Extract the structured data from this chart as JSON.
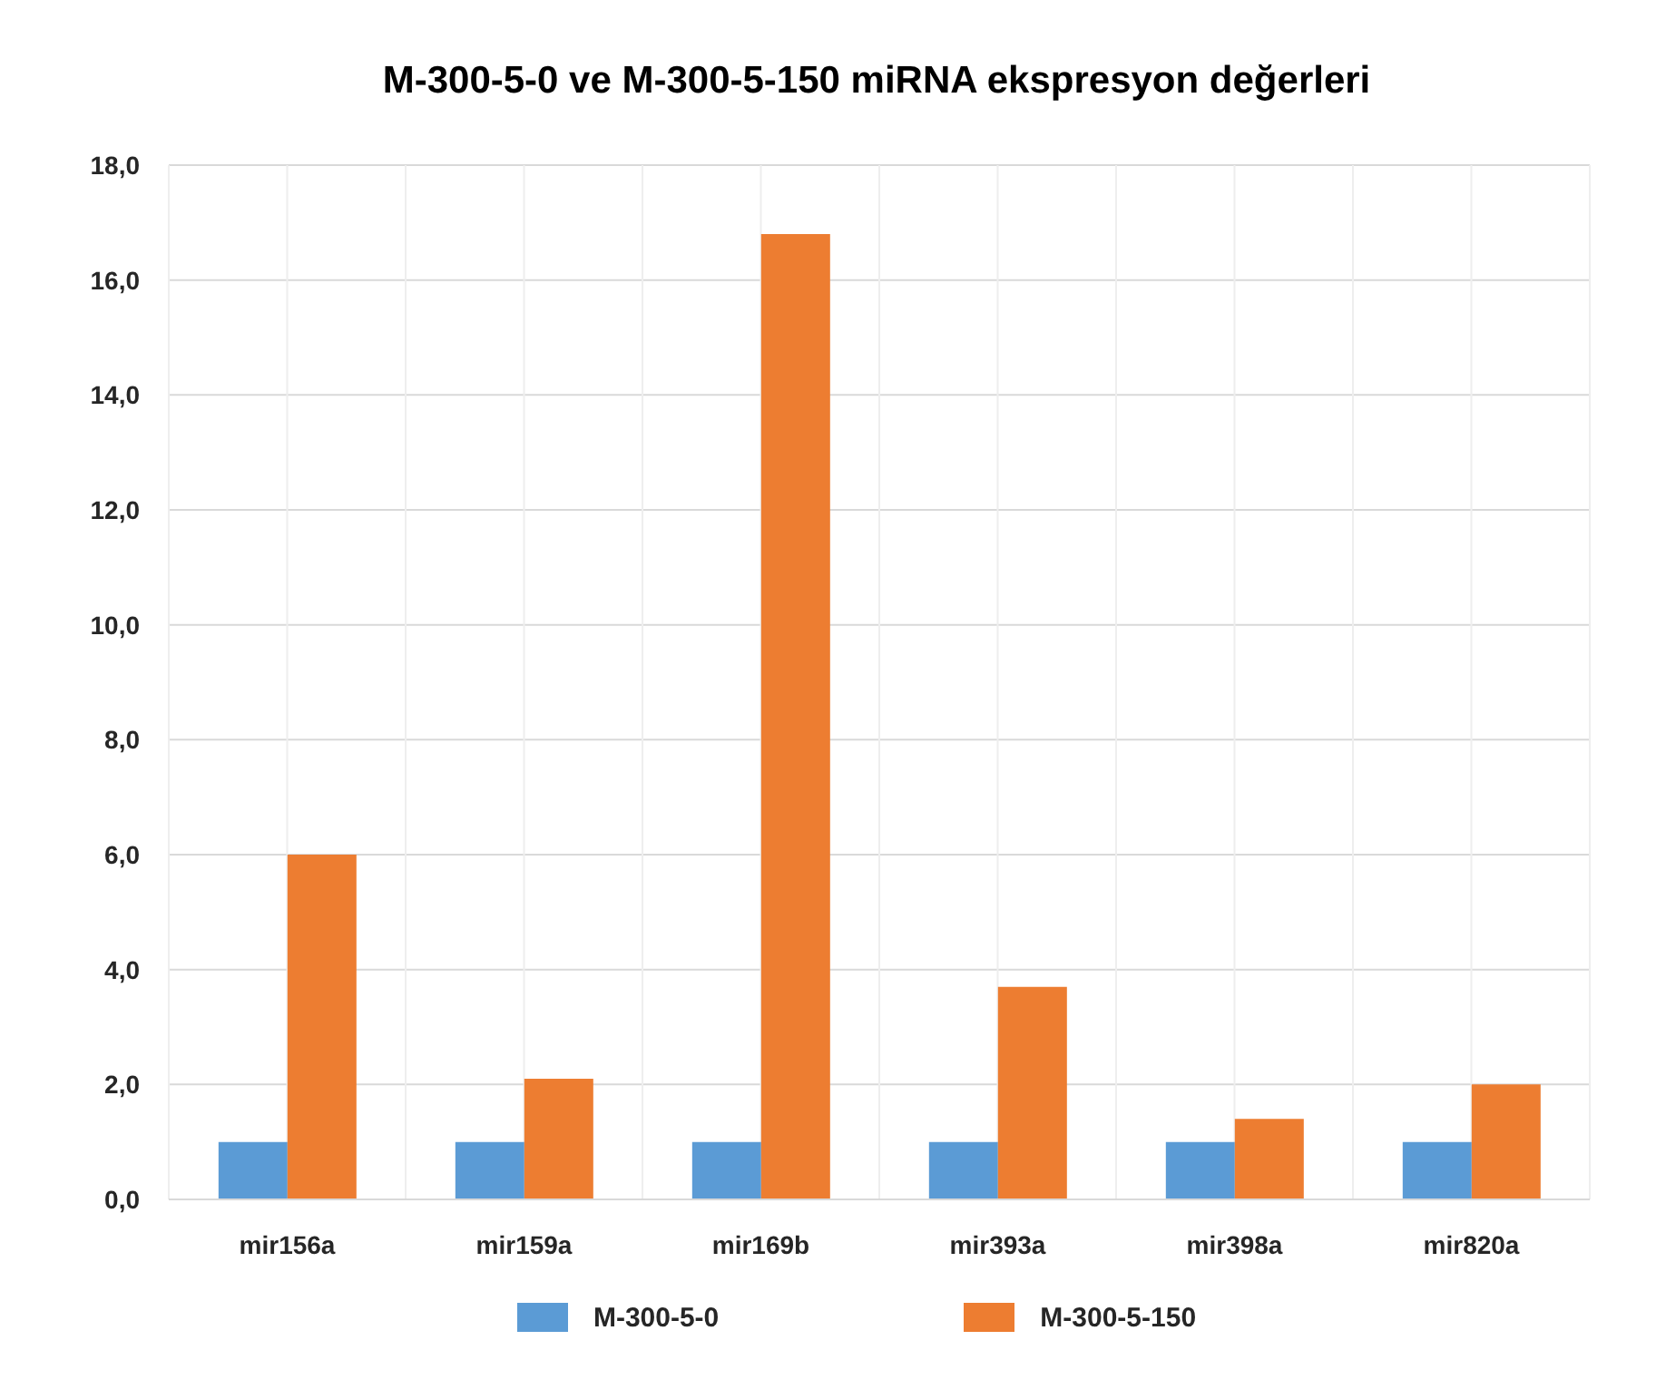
{
  "chart_data": {
    "type": "bar",
    "title": "M-300-5-0 ve M-300-5-150 miRNA ekspresyon değerleri",
    "categories": [
      "mir156a",
      "mir159a",
      "mir169b",
      "mir393a",
      "mir398a",
      "mir820a"
    ],
    "series": [
      {
        "name": "M-300-5-0",
        "color": "#5b9bd5",
        "values": [
          1.0,
          1.0,
          1.0,
          1.0,
          1.0,
          1.0
        ]
      },
      {
        "name": "M-300-5-150",
        "color": "#ed7d31",
        "values": [
          6.0,
          2.1,
          16.8,
          3.7,
          1.4,
          2.0
        ]
      }
    ],
    "ylim": [
      0,
      18
    ],
    "yticks": [
      {
        "value": 0,
        "label": "0,0"
      },
      {
        "value": 2,
        "label": "2,0"
      },
      {
        "value": 4,
        "label": "4,0"
      },
      {
        "value": 6,
        "label": "6,0"
      },
      {
        "value": 8,
        "label": "8,0"
      },
      {
        "value": 10,
        "label": "10,0"
      },
      {
        "value": 12,
        "label": "12,0"
      },
      {
        "value": 14,
        "label": "14,0"
      },
      {
        "value": 16,
        "label": "16,0"
      },
      {
        "value": 18,
        "label": "18,0"
      }
    ],
    "grid": true,
    "legend": "bottom"
  }
}
